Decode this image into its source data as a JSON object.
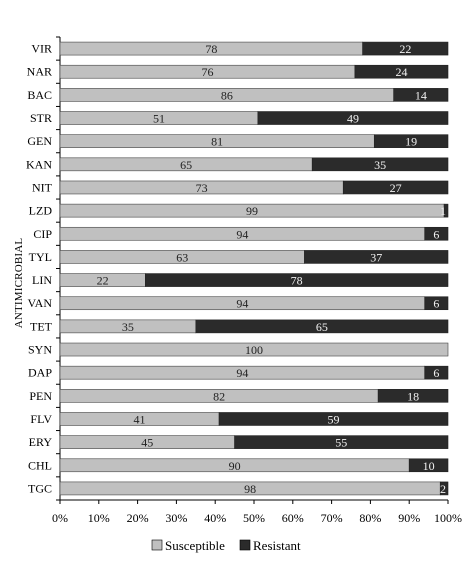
{
  "chart_data": {
    "type": "bar",
    "orientation": "horizontal",
    "stacked": true,
    "percent": true,
    "ylabel": "ANTIMICROBIAL",
    "xlabel": "",
    "title": "",
    "xlim": [
      0,
      100
    ],
    "xticks": [
      "0%",
      "10%",
      "20%",
      "30%",
      "40%",
      "50%",
      "60%",
      "70%",
      "80%",
      "90%",
      "100%"
    ],
    "categories": [
      "VIR",
      "NAR",
      "BAC",
      "STR",
      "GEN",
      "KAN",
      "NIT",
      "LZD",
      "CIP",
      "TYL",
      "LIN",
      "VAN",
      "TET",
      "SYN",
      "DAP",
      "PEN",
      "FLV",
      "ERY",
      "CHL",
      "TGC"
    ],
    "series": [
      {
        "name": "Susceptible",
        "color": "#c0c0c0",
        "values": [
          78,
          76,
          86,
          51,
          81,
          65,
          73,
          99,
          94,
          63,
          22,
          94,
          35,
          100,
          94,
          82,
          41,
          45,
          90,
          98
        ]
      },
      {
        "name": "Resistant",
        "color": "#2b2b2b",
        "values": [
          22,
          24,
          14,
          49,
          19,
          35,
          27,
          1,
          6,
          37,
          78,
          6,
          65,
          0,
          6,
          18,
          59,
          55,
          10,
          2
        ]
      }
    ],
    "grid": false,
    "legend_position": "bottom"
  }
}
